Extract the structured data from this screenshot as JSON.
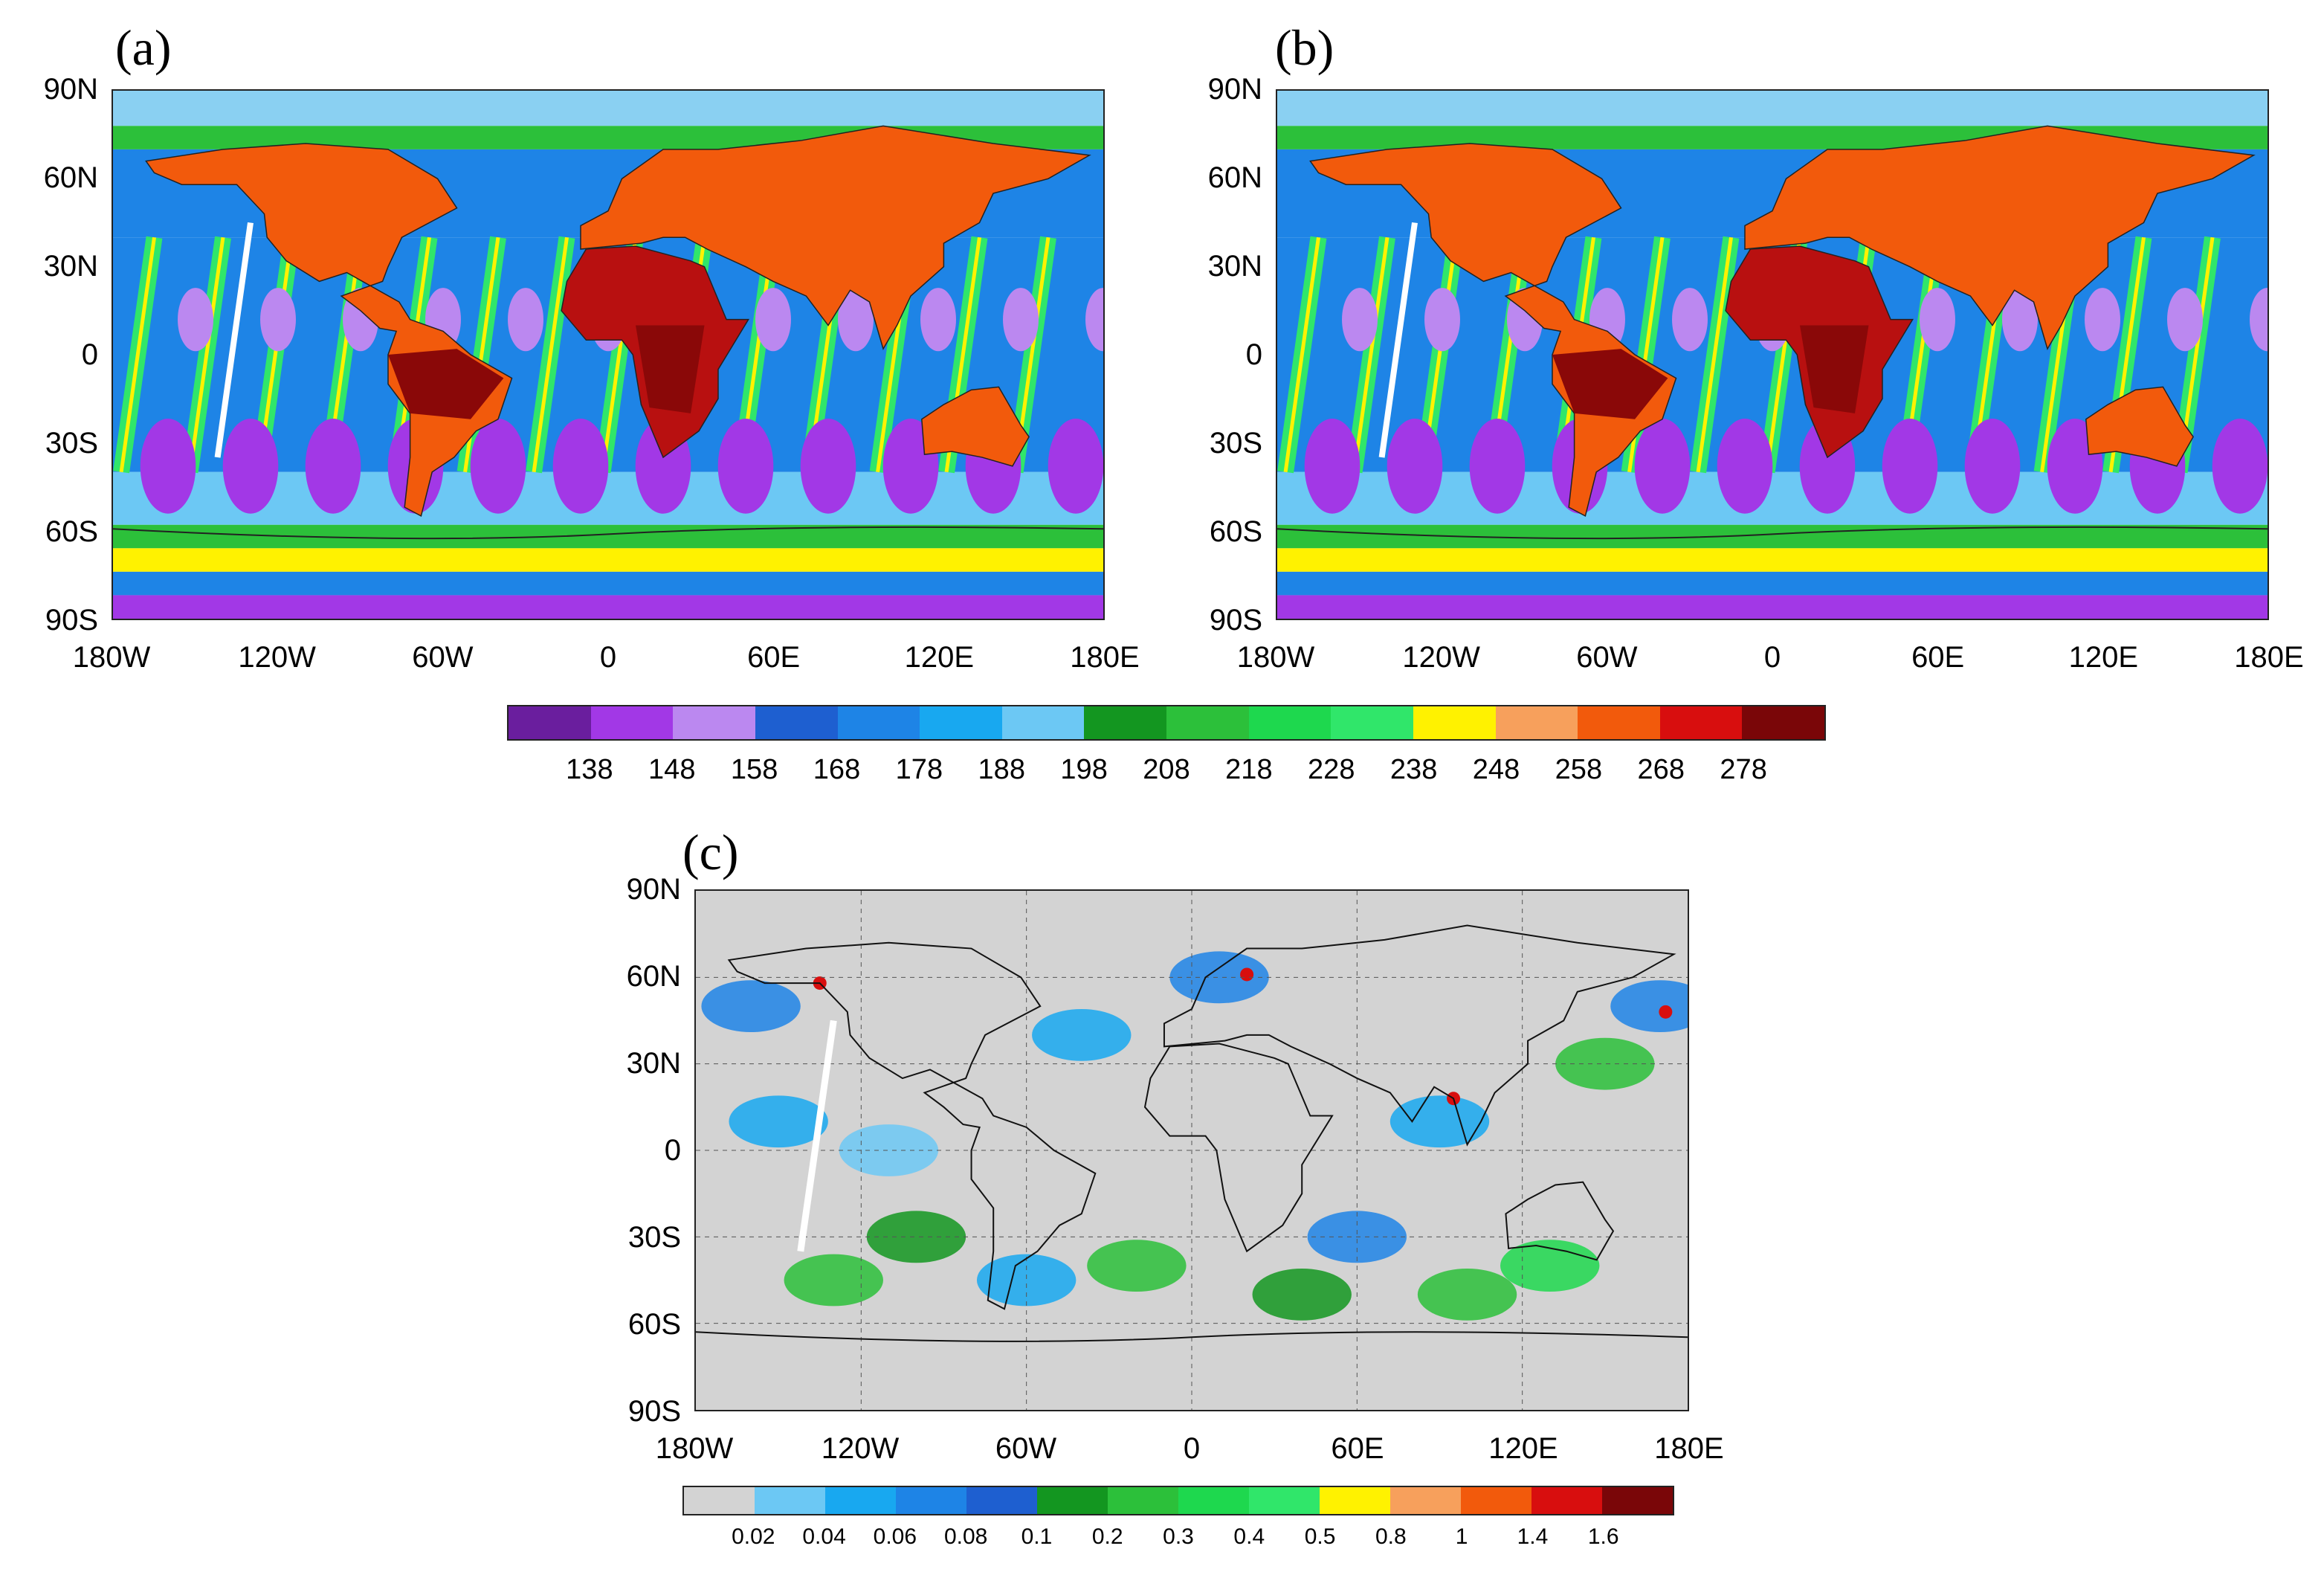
{
  "panels": [
    {
      "label": "(a)"
    },
    {
      "label": "(b)"
    },
    {
      "label": "(c)"
    }
  ],
  "lat_labels": [
    "90N",
    "60N",
    "30N",
    "0",
    "30S",
    "60S",
    "90S"
  ],
  "lon_labels": [
    "180W",
    "120W",
    "60W",
    "0",
    "60E",
    "120E",
    "180E"
  ],
  "colorbar_temp": {
    "colors": [
      "#6a1e9e",
      "#a238e6",
      "#bb88f0",
      "#1e5fd0",
      "#1e84e6",
      "#18a8f0",
      "#6cc8f4",
      "#139620",
      "#2cc03a",
      "#1ed84e",
      "#30e66a",
      "#fff200",
      "#f7a05c",
      "#f25a0c",
      "#d80e0e",
      "#7a0608"
    ],
    "tick_labels": [
      "138",
      "148",
      "158",
      "168",
      "178",
      "188",
      "198",
      "208",
      "218",
      "228",
      "238",
      "248",
      "258",
      "268",
      "278"
    ]
  },
  "colorbar_diff": {
    "colors": [
      "#d3d3d3",
      "#6cc8f4",
      "#18a8f0",
      "#1e84e6",
      "#1e5fd0",
      "#139620",
      "#2cc03a",
      "#1ed84e",
      "#30e66a",
      "#fff200",
      "#f7a05c",
      "#f25a0c",
      "#d80e0e",
      "#7a0608"
    ],
    "tick_labels": [
      "0.02",
      "0.04",
      "0.06",
      "0.08",
      "0.1",
      "0.2",
      "0.3",
      "0.4",
      "0.5",
      "0.8",
      "1",
      "1.4",
      "1.6"
    ]
  }
}
